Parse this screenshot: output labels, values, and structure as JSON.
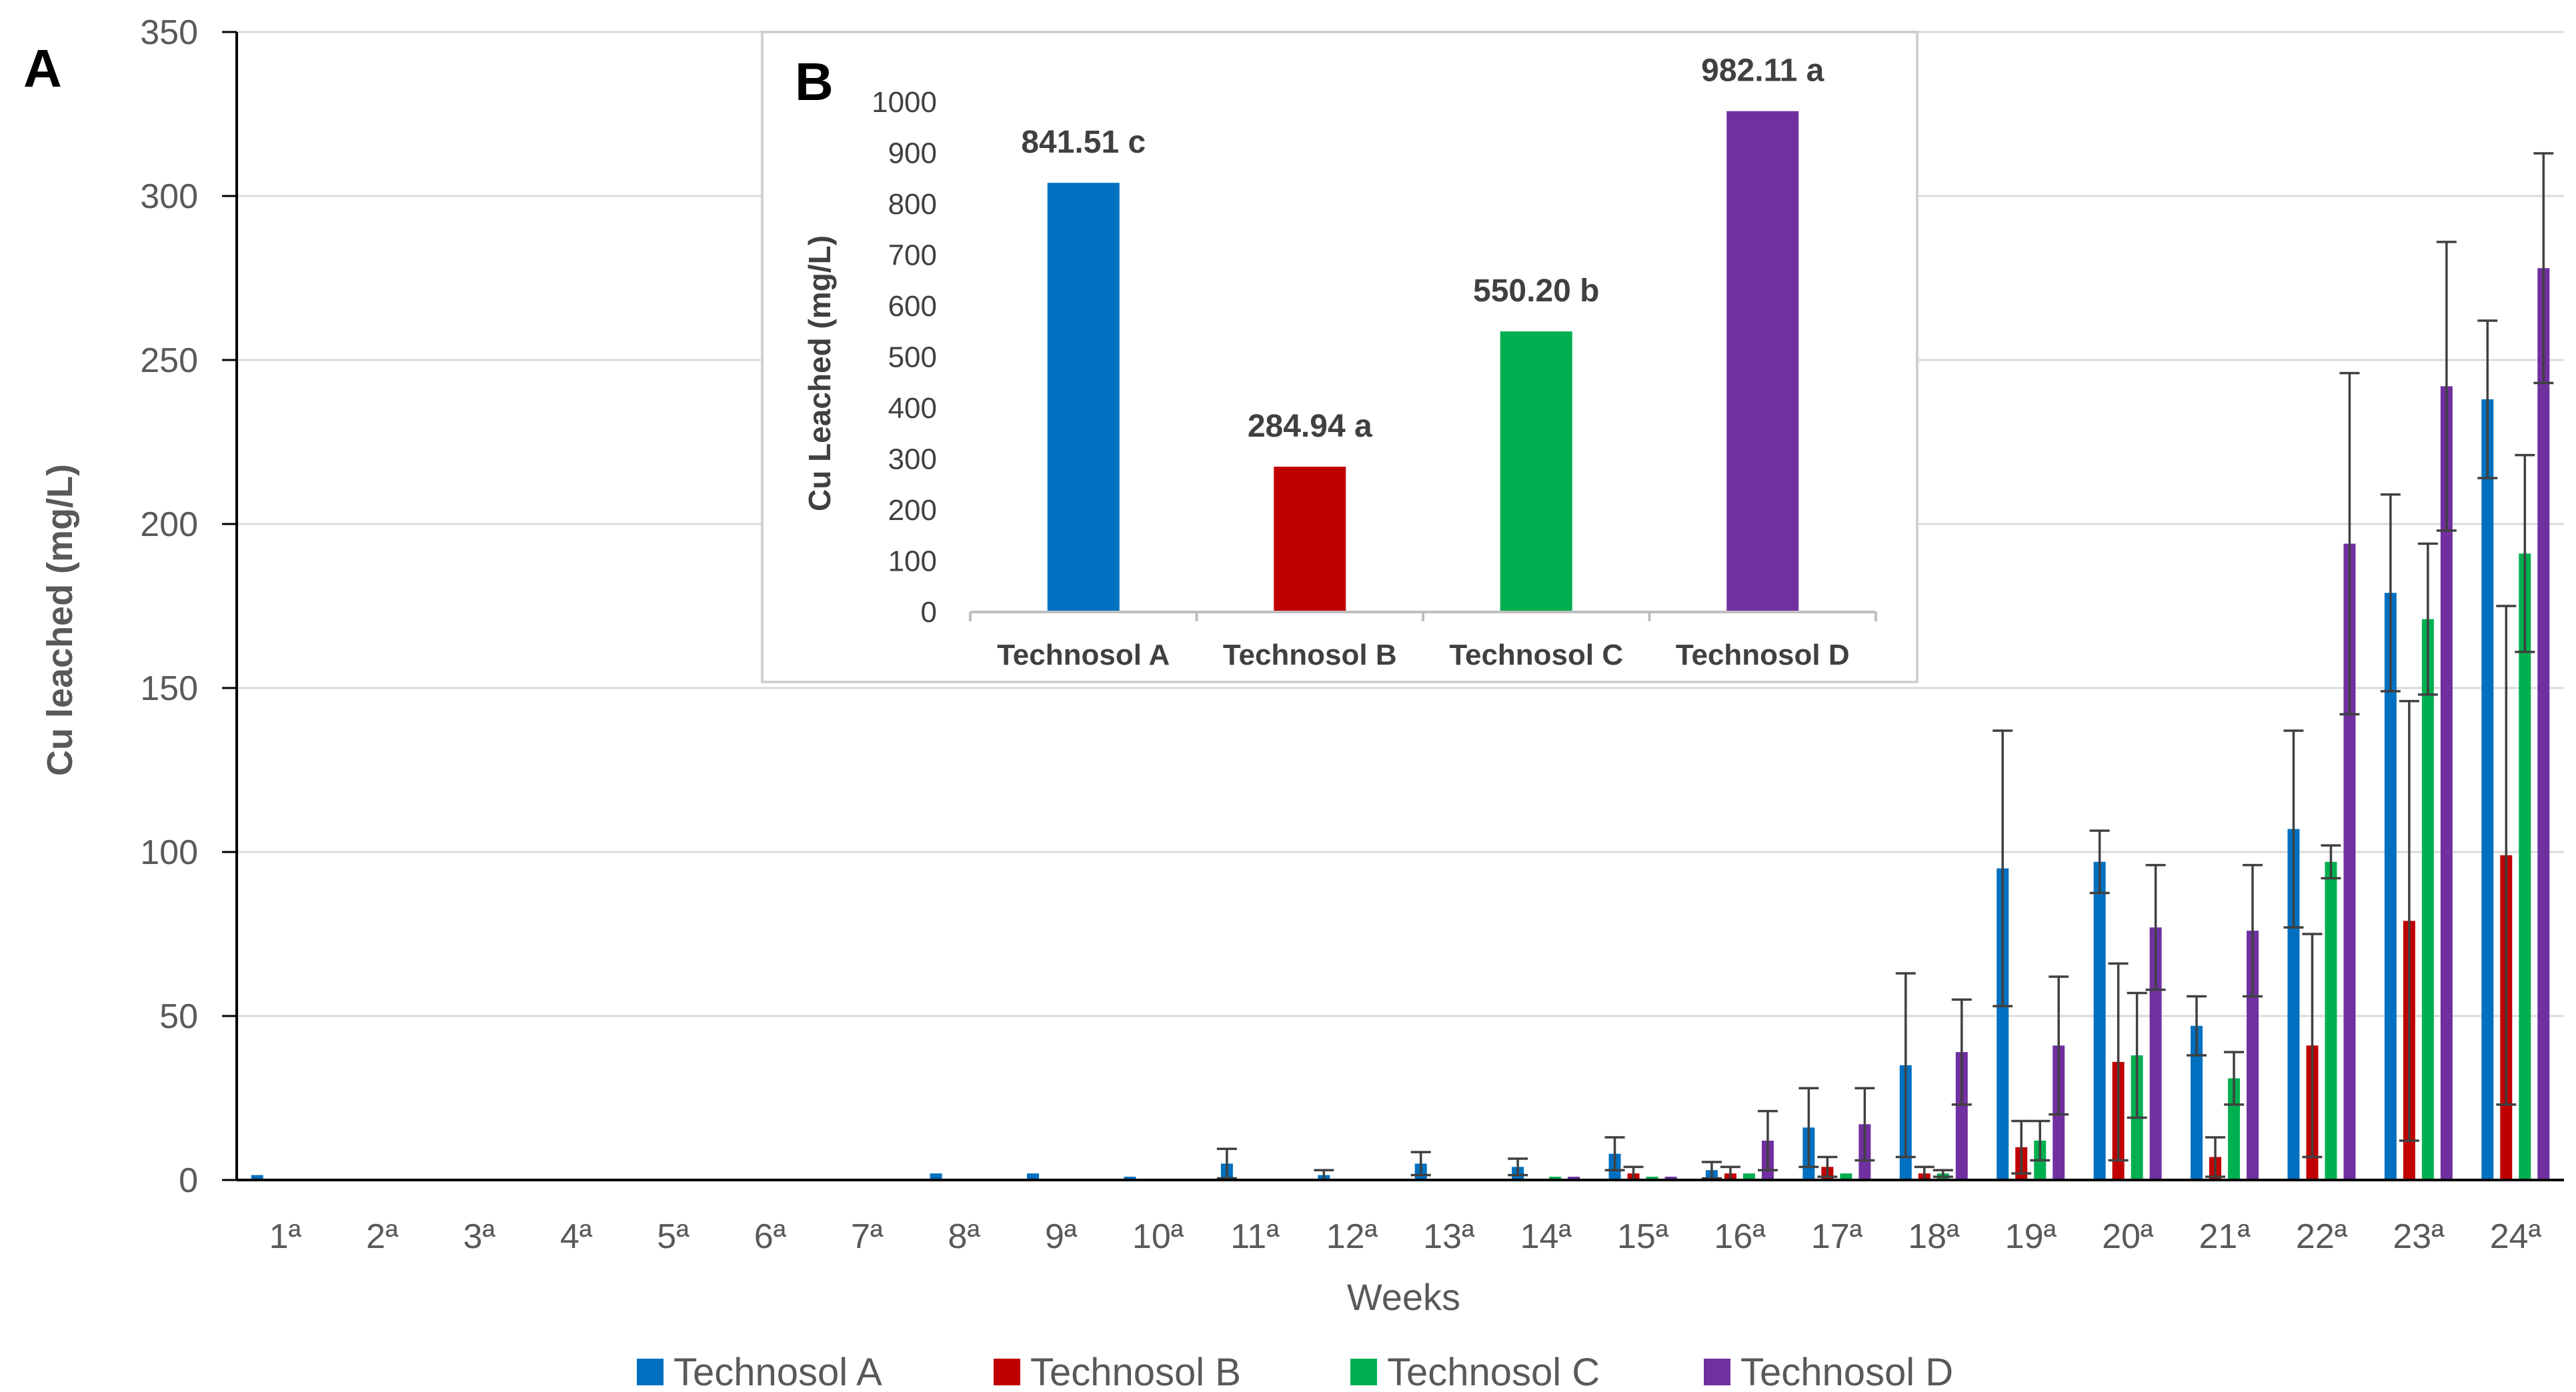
{
  "colors": {
    "Technosol A": "#0070C0",
    "Technosol B": "#C00000",
    "Technosol C": "#00B050",
    "Technosol D": "#7030A0"
  },
  "chart_data": [
    {
      "id": "A",
      "panel_label": "A",
      "type": "bar",
      "title": "",
      "xlabel": "Weeks",
      "ylabel": "Cu leached (mg/L)",
      "ylim": [
        0,
        350
      ],
      "yticks": [
        0,
        50,
        100,
        150,
        200,
        250,
        300,
        350
      ],
      "grid": true,
      "legend_position": "bottom",
      "categories": [
        "1ª",
        "2ª",
        "3ª",
        "4ª",
        "5ª",
        "6ª",
        "7ª",
        "8ª",
        "9ª",
        "10ª",
        "11ª",
        "12ª",
        "13ª",
        "14ª",
        "15ª",
        "16ª",
        "17ª",
        "18ª",
        "19ª",
        "20ª",
        "21ª",
        "22ª",
        "23ª",
        "24ª"
      ],
      "series": [
        {
          "name": "Technosol A",
          "values": [
            1.5,
            0,
            0,
            0,
            0,
            0,
            0,
            2,
            2,
            1,
            5,
            1.5,
            5,
            4,
            8,
            3,
            16,
            35,
            95,
            97,
            47,
            107,
            179,
            238
          ],
          "errors": [
            0,
            0,
            0,
            0,
            0,
            0,
            0,
            0,
            0,
            0,
            4.5,
            1.5,
            3.5,
            2.5,
            5,
            2.5,
            12,
            28,
            42,
            9.5,
            9,
            30,
            30,
            24
          ]
        },
        {
          "name": "Technosol B",
          "values": [
            0,
            0,
            0,
            0,
            0,
            0,
            0,
            0,
            0,
            0,
            0,
            0,
            0,
            0,
            2,
            2,
            4,
            2,
            10,
            36,
            7,
            41,
            79,
            99
          ],
          "errors": [
            0,
            0,
            0,
            0,
            0,
            0,
            0,
            0,
            0,
            0,
            0,
            0,
            0,
            0,
            2,
            2,
            3,
            2,
            8,
            30,
            6,
            34,
            67,
            76
          ]
        },
        {
          "name": "Technosol C",
          "values": [
            0,
            0,
            0,
            0,
            0,
            0,
            0,
            0,
            0,
            0,
            0,
            0,
            0,
            1,
            1,
            2,
            2,
            2,
            12,
            38,
            31,
            97,
            171,
            191
          ],
          "errors": [
            0,
            0,
            0,
            0,
            0,
            0,
            0,
            0,
            0,
            0,
            0,
            0,
            0,
            0,
            0,
            0,
            0,
            1,
            6,
            19,
            8,
            5,
            23,
            30
          ]
        },
        {
          "name": "Technosol D",
          "values": [
            0,
            0,
            0,
            0,
            0,
            0,
            0,
            0,
            0,
            0,
            0,
            0,
            0,
            1,
            1,
            12,
            17,
            39,
            41,
            77,
            76,
            194,
            242,
            278
          ],
          "errors": [
            0,
            0,
            0,
            0,
            0,
            0,
            0,
            0,
            0,
            0,
            0,
            0,
            0,
            0,
            0,
            9,
            11,
            16,
            21,
            19,
            20,
            52,
            44,
            35
          ]
        }
      ]
    },
    {
      "id": "B",
      "panel_label": "B",
      "type": "bar",
      "title": "",
      "xlabel": "",
      "ylabel": "Cu Leached (mg/L)",
      "ylim": [
        0,
        1000
      ],
      "yticks": [
        0,
        100,
        200,
        300,
        400,
        500,
        600,
        700,
        800,
        900,
        1000
      ],
      "grid": false,
      "categories": [
        "Technosol A",
        "Technosol B",
        "Technosol C",
        "Technosol D"
      ],
      "values": [
        841.51,
        284.94,
        550.2,
        982.11
      ],
      "data_labels": [
        "841.51 c",
        "284.94 a",
        "550.20 b",
        "982.11 a"
      ]
    }
  ]
}
